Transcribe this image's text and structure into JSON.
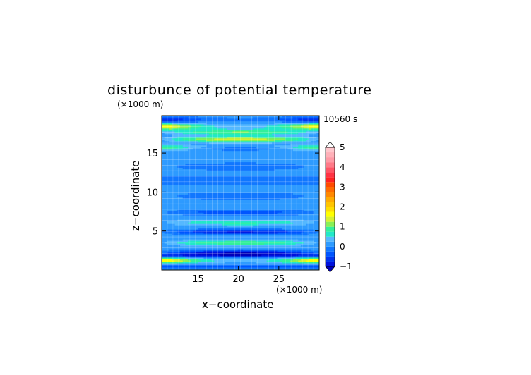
{
  "chart_data": {
    "type": "heatmap",
    "title": "disturbunce of potential temperature",
    "time_label": "10560 s",
    "xlabel": "x−coordinate",
    "ylabel": "z−coordinate",
    "x_unit": "(×1000 m)",
    "y_unit": "(×1000 m)",
    "xlim": [
      10.5,
      30
    ],
    "ylim": [
      0,
      19.8
    ],
    "x_ticks": [
      15,
      20,
      25
    ],
    "y_ticks": [
      5,
      10,
      15
    ],
    "grid": true,
    "colorbar": {
      "placement": "right",
      "tick_labels": [
        "5",
        "4",
        "3",
        "2",
        "1",
        "0",
        "−1"
      ],
      "tick_values": [
        5,
        4,
        3,
        2,
        1,
        0,
        -1
      ],
      "levels": [
        -1.0,
        -0.75,
        -0.5,
        -0.25,
        0.0,
        0.25,
        0.5,
        0.75,
        1.0,
        1.25,
        1.5,
        1.75,
        2.0,
        2.25,
        2.5,
        2.75,
        3.0,
        3.25,
        3.5,
        3.75,
        4.0,
        4.25,
        4.5,
        4.75,
        5.0
      ],
      "colors": [
        "#0011dd",
        "#0033ee",
        "#0055ff",
        "#1177ff",
        "#2e9bff",
        "#55b8ff",
        "#22e8c8",
        "#33f09a",
        "#88f055",
        "#d8f030",
        "#ffff00",
        "#ffdd00",
        "#ffc400",
        "#ffaa00",
        "#ff8800",
        "#ff6a00",
        "#ff4a00",
        "#ff2222",
        "#ff3344",
        "#ff5566",
        "#ff7a88",
        "#ff9aa6",
        "#ffb0b8",
        "#ffc6cc"
      ],
      "under_color": "#0000bb",
      "over_color": "#ffffff"
    },
    "bands": [
      {
        "z": 19.3,
        "v": -0.85,
        "halfwidth_z": 0.35,
        "x_profile": "edges"
      },
      {
        "z": 18.4,
        "v": 1.5,
        "halfwidth_z": 0.4,
        "x_profile": "edges"
      },
      {
        "z": 17.7,
        "v": 0.9,
        "halfwidth_z": 0.35,
        "x_profile": "center"
      },
      {
        "z": 16.8,
        "v": 1.3,
        "halfwidth_z": 0.35,
        "x_profile": "center"
      },
      {
        "z": 15.7,
        "v": 0.9,
        "halfwidth_z": 0.35,
        "x_profile": "edges"
      },
      {
        "z": 15.6,
        "v": -0.4,
        "halfwidth_z": 0.25,
        "x_profile": "center"
      },
      {
        "z": 13.3,
        "v": -0.25,
        "halfwidth_z": 0.5,
        "x_profile": "center"
      },
      {
        "z": 11.5,
        "v": -0.3,
        "halfwidth_z": 0.5,
        "x_profile": "flat"
      },
      {
        "z": 9.5,
        "v": -0.25,
        "halfwidth_z": 0.5,
        "x_profile": "center"
      },
      {
        "z": 7.4,
        "v": -0.5,
        "halfwidth_z": 0.3,
        "x_profile": "center"
      },
      {
        "z": 6.1,
        "v": 0.7,
        "halfwidth_z": 0.35,
        "x_profile": "center"
      },
      {
        "z": 4.9,
        "v": -0.9,
        "halfwidth_z": 0.3,
        "x_profile": "center"
      },
      {
        "z": 3.5,
        "v": 0.9,
        "halfwidth_z": 0.35,
        "x_profile": "center"
      },
      {
        "z": 2.2,
        "v": -1.0,
        "halfwidth_z": 0.4,
        "x_profile": "center"
      },
      {
        "z": 1.9,
        "v": -0.6,
        "halfwidth_z": 0.3,
        "x_profile": "flat"
      },
      {
        "z": 1.25,
        "v": 1.6,
        "halfwidth_z": 0.35,
        "x_profile": "edges"
      },
      {
        "z": 0.5,
        "v": -0.4,
        "halfwidth_z": 0.3,
        "x_profile": "flat"
      }
    ],
    "background_value": 0.1
  }
}
